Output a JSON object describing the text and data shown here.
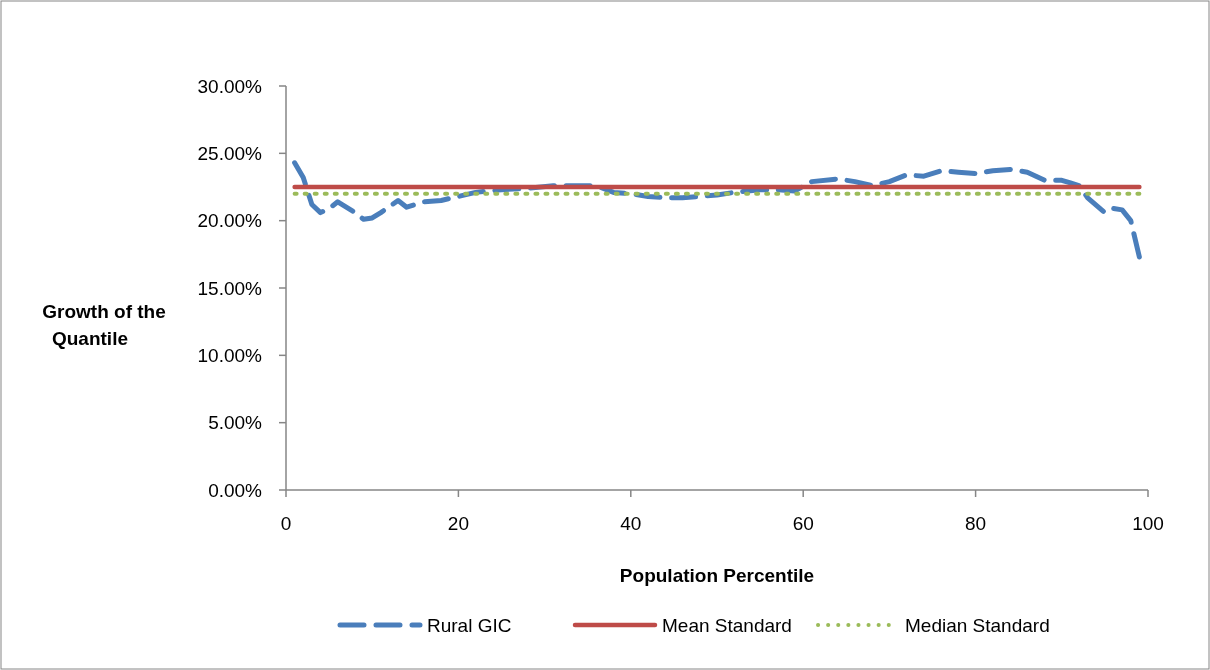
{
  "chart_data": {
    "type": "line",
    "xlabel": "Population Percentile",
    "ylabel": "Growth of the Quantile",
    "xlim": [
      0,
      100
    ],
    "xticks": [
      0,
      20,
      40,
      60,
      80,
      100
    ],
    "ylim": [
      0,
      0.3
    ],
    "yticks": [
      {
        "value": 0,
        "label": "0.00%"
      },
      {
        "value": 0.05,
        "label": "5.00%"
      },
      {
        "value": 0.1,
        "label": "10.00%"
      },
      {
        "value": 0.15,
        "label": "15.00%"
      },
      {
        "value": 0.2,
        "label": "20.00%"
      },
      {
        "value": 0.25,
        "label": "25.00%"
      },
      {
        "value": 0.3,
        "label": "30.00%"
      }
    ],
    "grid": false,
    "legend": "bottom",
    "marker": "none",
    "series": [
      {
        "name": "Rural GIC",
        "color": "#4a7ebb",
        "line_style": "dashed",
        "x": [
          1,
          2,
          3,
          4,
          5,
          6,
          8,
          9,
          10,
          11,
          13,
          14,
          16,
          18,
          20,
          22,
          25,
          28,
          31,
          34,
          36,
          38,
          40,
          42,
          44,
          46,
          48,
          50,
          52,
          55,
          57,
          59,
          61,
          64,
          66,
          68,
          70,
          72,
          74,
          76,
          78,
          80,
          82,
          84,
          86,
          88,
          90,
          91,
          92,
          93,
          95,
          96,
          97,
          98,
          99
        ],
        "values": [
          0.243,
          0.232,
          0.212,
          0.206,
          0.209,
          0.214,
          0.206,
          0.201,
          0.202,
          0.206,
          0.215,
          0.21,
          0.214,
          0.215,
          0.218,
          0.221,
          0.223,
          0.224,
          0.226,
          0.226,
          0.226,
          0.221,
          0.22,
          0.218,
          0.217,
          0.217,
          0.218,
          0.219,
          0.221,
          0.223,
          0.223,
          0.222,
          0.229,
          0.231,
          0.229,
          0.226,
          0.229,
          0.234,
          0.233,
          0.237,
          0.236,
          0.235,
          0.237,
          0.238,
          0.236,
          0.23,
          0.23,
          0.228,
          0.226,
          0.217,
          0.206,
          0.209,
          0.208,
          0.2,
          0.173
        ]
      },
      {
        "name": "Mean Standard",
        "color": "#be4b48",
        "line_style": "solid",
        "x": [
          1,
          99
        ],
        "values": [
          0.225,
          0.225
        ]
      },
      {
        "name": "Median Standard",
        "color": "#9bbb59",
        "line_style": "dotted",
        "x": [
          1,
          99
        ],
        "values": [
          0.22,
          0.22
        ]
      }
    ]
  }
}
